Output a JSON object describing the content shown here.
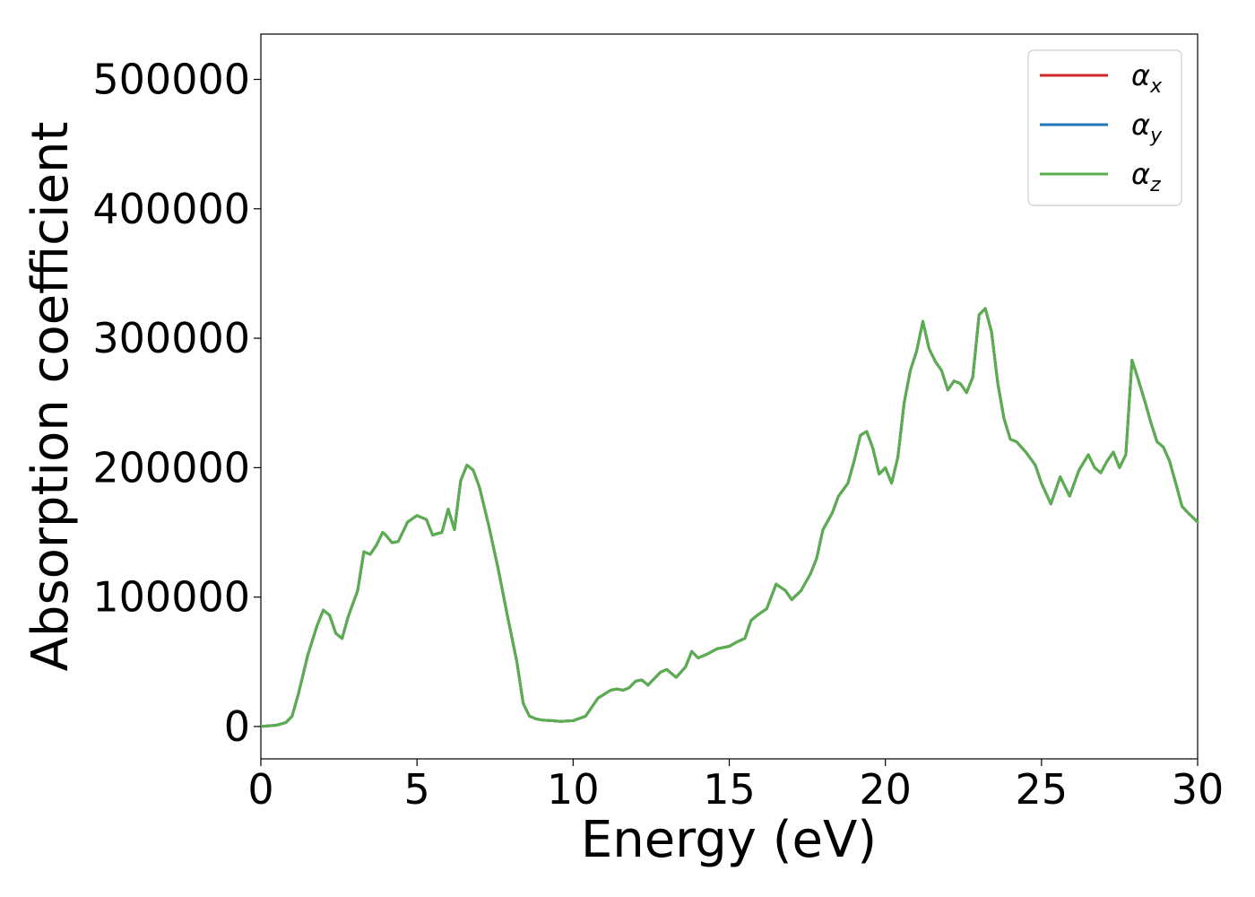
{
  "chart_data": {
    "type": "line",
    "xlabel": "Energy (eV)",
    "ylabel": "Absorption coefficient",
    "xlim": [
      0,
      30
    ],
    "ylim": [
      -25000,
      535000
    ],
    "x_ticks": [
      0,
      5,
      10,
      15,
      20,
      25,
      30
    ],
    "x_tick_labels": [
      "0",
      "5",
      "10",
      "15",
      "20",
      "25",
      "30"
    ],
    "y_ticks": [
      0,
      100000,
      200000,
      300000,
      400000,
      500000
    ],
    "y_tick_labels": [
      "0",
      "100000",
      "200000",
      "300000",
      "400000",
      "500000"
    ],
    "grid": false,
    "legend_position": "top-right",
    "series": [
      {
        "name": "α",
        "subscript": "x",
        "color": "#d62728",
        "values_same_as": "z"
      },
      {
        "name": "α",
        "subscript": "y",
        "color": "#1f77b4",
        "values_same_as": "z"
      },
      {
        "name": "α",
        "subscript": "z",
        "color": "#5aae4e",
        "x": [
          0,
          0.5,
          0.8,
          1.0,
          1.2,
          1.5,
          1.8,
          2.0,
          2.2,
          2.4,
          2.6,
          2.8,
          3.1,
          3.3,
          3.5,
          3.7,
          3.9,
          4.0,
          4.2,
          4.4,
          4.7,
          5.0,
          5.3,
          5.5,
          5.8,
          6.0,
          6.2,
          6.4,
          6.6,
          6.8,
          7.0,
          7.3,
          7.6,
          7.9,
          8.2,
          8.4,
          8.6,
          8.8,
          9.0,
          9.3,
          9.6,
          10.0,
          10.4,
          10.6,
          10.8,
          11.0,
          11.2,
          11.4,
          11.6,
          11.8,
          12.0,
          12.2,
          12.4,
          12.6,
          12.8,
          13.0,
          13.3,
          13.6,
          13.8,
          14.0,
          14.3,
          14.6,
          15.0,
          15.3,
          15.5,
          15.7,
          15.9,
          16.2,
          16.5,
          16.8,
          17.0,
          17.3,
          17.6,
          17.8,
          18.0,
          18.3,
          18.5,
          18.8,
          19.0,
          19.2,
          19.4,
          19.6,
          19.8,
          20.0,
          20.2,
          20.4,
          20.6,
          20.8,
          21.0,
          21.2,
          21.4,
          21.6,
          21.8,
          22.0,
          22.2,
          22.4,
          22.6,
          22.8,
          23.0,
          23.2,
          23.4,
          23.6,
          23.8,
          24.0,
          24.2,
          24.5,
          24.8,
          25.0,
          25.3,
          25.6,
          25.9,
          26.2,
          26.5,
          26.7,
          26.9,
          27.1,
          27.3,
          27.5,
          27.7,
          27.9,
          28.1,
          28.3,
          28.5,
          28.7,
          28.9,
          29.1,
          29.3,
          29.5,
          29.7,
          30.0
        ],
        "y": [
          0,
          1000,
          3000,
          8000,
          25000,
          55000,
          78000,
          90000,
          86000,
          72000,
          68000,
          85000,
          105000,
          135000,
          133000,
          140000,
          150000,
          148000,
          142000,
          143000,
          158000,
          163000,
          160000,
          148000,
          150000,
          168000,
          152000,
          190000,
          202000,
          198000,
          185000,
          155000,
          122000,
          85000,
          50000,
          18000,
          8000,
          6000,
          5000,
          4500,
          4000,
          4500,
          8000,
          15000,
          22000,
          25000,
          28000,
          29000,
          28000,
          30000,
          35000,
          36000,
          32000,
          37000,
          42000,
          44000,
          38000,
          46000,
          58000,
          53000,
          56000,
          60000,
          62000,
          66000,
          68000,
          82000,
          86000,
          91000,
          110000,
          105000,
          98000,
          105000,
          118000,
          130000,
          152000,
          165000,
          178000,
          188000,
          205000,
          225000,
          228000,
          215000,
          195000,
          200000,
          188000,
          208000,
          250000,
          275000,
          290000,
          313000,
          292000,
          282000,
          275000,
          260000,
          267000,
          265000,
          258000,
          270000,
          318000,
          323000,
          305000,
          265000,
          238000,
          222000,
          220000,
          212000,
          202000,
          188000,
          172000,
          193000,
          178000,
          198000,
          210000,
          200000,
          196000,
          205000,
          212000,
          200000,
          210000,
          283000,
          268000,
          252000,
          235000,
          220000,
          216000,
          205000,
          188000,
          170000,
          165000,
          158000
        ]
      }
    ]
  }
}
